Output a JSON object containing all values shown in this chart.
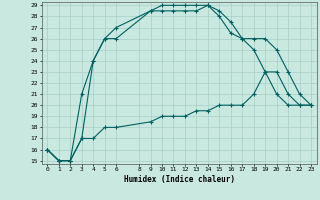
{
  "title": "",
  "xlabel": "Humidex (Indice chaleur)",
  "bg_color": "#c8e8e0",
  "grid_color": "#a8cfc8",
  "line_color": "#006060",
  "ylim": [
    15,
    29
  ],
  "xlim": [
    0,
    23
  ],
  "yticks": [
    15,
    16,
    17,
    18,
    19,
    20,
    21,
    22,
    23,
    24,
    25,
    26,
    27,
    28,
    29
  ],
  "xticks": [
    0,
    1,
    2,
    3,
    4,
    5,
    6,
    8,
    9,
    10,
    11,
    12,
    13,
    14,
    15,
    16,
    17,
    18,
    19,
    20,
    21,
    22,
    23
  ],
  "line1_x": [
    0,
    1,
    2,
    3,
    4,
    5,
    6,
    9,
    10,
    11,
    12,
    13,
    14,
    15,
    16,
    17,
    18,
    19,
    20,
    21,
    22,
    23
  ],
  "line1_y": [
    16,
    15,
    15,
    17,
    24,
    26,
    27,
    28.5,
    29,
    29,
    29,
    29,
    29,
    28.5,
    27.5,
    26,
    26,
    26,
    25,
    23,
    21,
    20
  ],
  "line2_x": [
    0,
    1,
    2,
    3,
    4,
    5,
    6,
    9,
    10,
    11,
    12,
    13,
    14,
    15,
    16,
    17,
    18,
    19,
    20,
    21,
    22,
    23
  ],
  "line2_y": [
    16,
    15,
    15,
    21,
    24,
    26,
    26,
    28.5,
    28.5,
    28.5,
    28.5,
    28.5,
    29,
    28,
    26.5,
    26,
    25,
    23,
    21,
    20,
    20,
    20
  ],
  "line3_x": [
    0,
    1,
    2,
    3,
    4,
    5,
    6,
    9,
    10,
    11,
    12,
    13,
    14,
    15,
    16,
    17,
    18,
    19,
    20,
    21,
    22,
    23
  ],
  "line3_y": [
    16,
    15,
    15,
    17,
    17,
    18,
    18,
    18.5,
    19,
    19,
    19,
    19.5,
    19.5,
    20,
    20,
    20,
    21,
    23,
    23,
    21,
    20,
    20
  ]
}
